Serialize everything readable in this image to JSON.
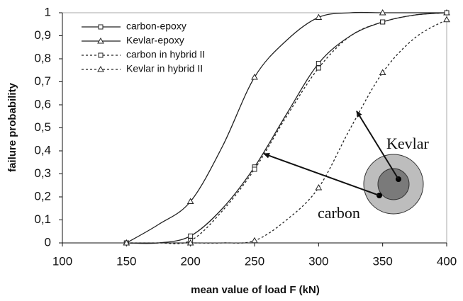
{
  "chart_data": {
    "type": "line",
    "x_label": "mean value of load F (kN)",
    "y_label": "failure probability",
    "x": [
      150,
      175,
      200,
      225,
      250,
      275,
      300,
      325,
      350,
      375,
      400
    ],
    "series": [
      {
        "name": "carbon-epoxy",
        "color": "#222222",
        "dash": "solid",
        "marker": "square",
        "values": [
          0,
          0,
          0.03,
          0.15,
          0.33,
          0.56,
          0.78,
          0.9,
          0.96,
          0.99,
          1
        ]
      },
      {
        "name": "Kevlar-epoxy",
        "color": "#222222",
        "dash": "solid",
        "marker": "triangle",
        "values": [
          0,
          0.08,
          0.18,
          0.42,
          0.72,
          0.88,
          0.98,
          1,
          1,
          1,
          1
        ]
      },
      {
        "name": "carbon in hybrid II",
        "color": "#222222",
        "dash": "dashed",
        "marker": "square",
        "values": [
          0,
          0,
          0.01,
          0.14,
          0.32,
          0.55,
          0.76,
          0.9,
          0.96,
          0.99,
          1
        ]
      },
      {
        "name": "Kevlar in hybrid II",
        "color": "#222222",
        "dash": "dashed",
        "marker": "triangle",
        "values": [
          0,
          0,
          0,
          0,
          0.01,
          0.1,
          0.24,
          0.5,
          0.74,
          0.89,
          0.97
        ]
      }
    ],
    "xlim": [
      100,
      400
    ],
    "xticks": [
      100,
      150,
      200,
      250,
      300,
      350,
      400
    ],
    "ylim": [
      0,
      1
    ],
    "yticks": [
      0,
      {
        "value": 0.1,
        "label": "0,1"
      },
      {
        "value": 0.2,
        "label": "0,2"
      },
      {
        "value": 0.3,
        "label": "0,3"
      },
      {
        "value": 0.4,
        "label": "0,4"
      },
      {
        "value": 0.5,
        "label": "0,5"
      },
      {
        "value": 0.6,
        "label": "0,6"
      },
      {
        "value": 0.7,
        "label": "0,7"
      },
      {
        "value": 0.8,
        "label": "0,8"
      },
      {
        "value": 0.9,
        "label": "0,9"
      },
      1
    ],
    "legend": "upper left",
    "annotations": [
      "Kevlar",
      "carbon"
    ]
  }
}
